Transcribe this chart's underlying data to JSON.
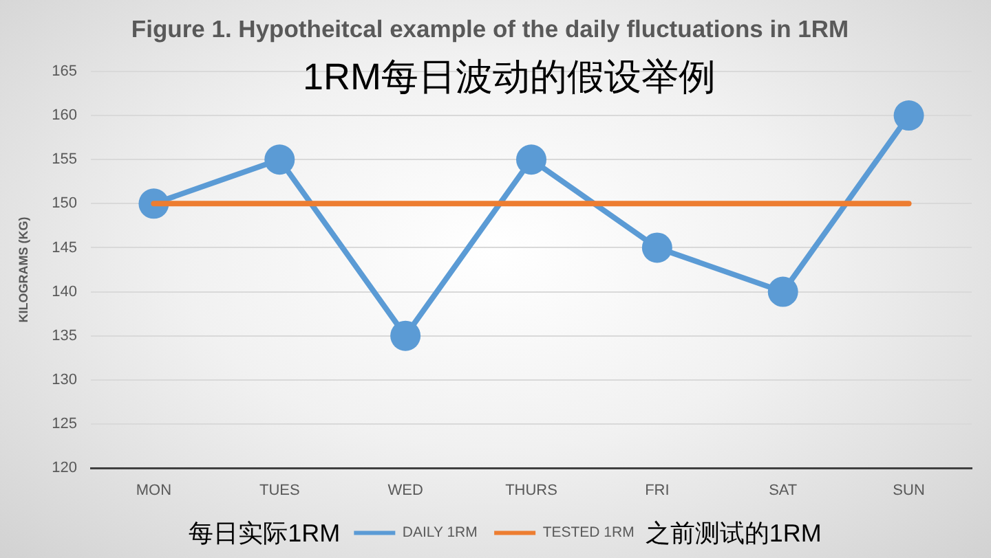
{
  "chart_data": {
    "type": "line",
    "title": "Figure 1. Hypotheitcal example of the daily fluctuations in 1RM",
    "subtitle": "1RM每日波动的假设举例",
    "ylabel": "KILOGRAMS (KG)",
    "annotations": [
      "每日实际1RM",
      "之前测试的1RM"
    ],
    "categories": [
      "MON",
      "TUES",
      "WED",
      "THURS",
      "FRI",
      "SAT",
      "SUN"
    ],
    "series": [
      {
        "name": "DAILY 1RM",
        "color": "#5b9bd5",
        "values": [
          150,
          155,
          135,
          155,
          145,
          140,
          160
        ],
        "marker": "circle"
      },
      {
        "name": "TESTED 1RM",
        "color": "#ed7d31",
        "values": [
          150,
          150,
          150,
          150,
          150,
          150,
          150
        ],
        "marker": "none"
      }
    ],
    "ylim": [
      120,
      165
    ],
    "yticks": [
      120,
      125,
      130,
      135,
      140,
      145,
      150,
      155,
      160,
      165
    ],
    "grid": "y",
    "legend": "bottom",
    "line_style": "solid"
  }
}
